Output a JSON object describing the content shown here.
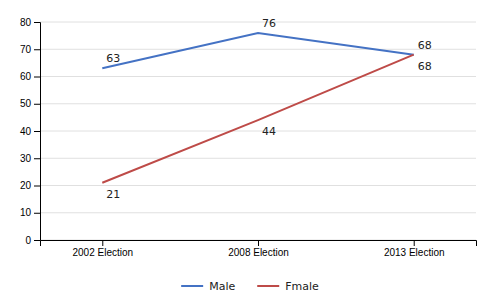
{
  "chart_data": {
    "type": "line",
    "categories": [
      "2002 Election",
      "2008 Election",
      "2013 Election"
    ],
    "series": [
      {
        "name": "Male",
        "color": "#4472C4",
        "values": [
          63,
          76,
          68
        ]
      },
      {
        "name": "Fmale",
        "color": "#BE4B48",
        "values": [
          21,
          44,
          68
        ]
      }
    ],
    "ylim": [
      0,
      80
    ],
    "yticks": [
      0,
      10,
      20,
      30,
      40,
      50,
      60,
      70,
      80
    ],
    "grid": true,
    "legend": "bottom",
    "data_labels": true
  }
}
